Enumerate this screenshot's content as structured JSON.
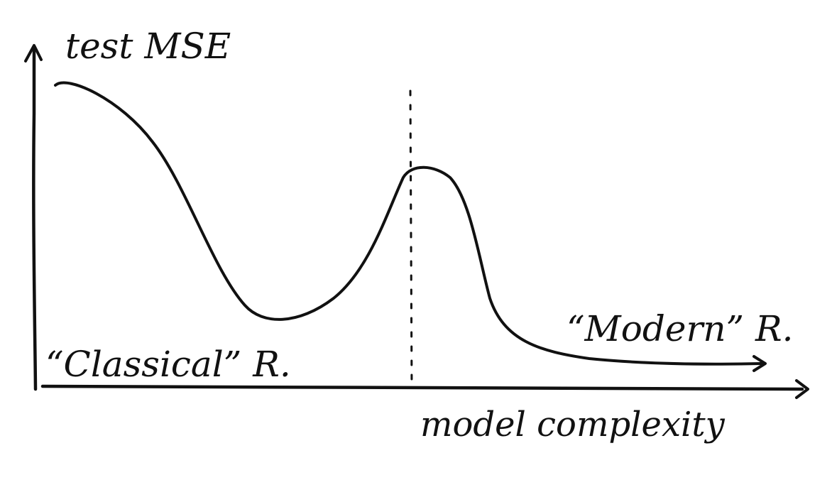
{
  "figure": {
    "y_axis_label": "test MSE",
    "x_axis_label": "model complexity",
    "left_region_label": "“Classical” R.",
    "right_region_label": "“Modern” R."
  }
}
